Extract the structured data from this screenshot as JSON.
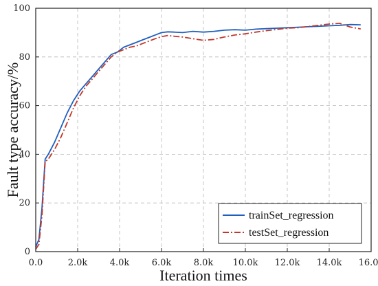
{
  "chart_data": {
    "type": "line",
    "xlabel": "Iteration times",
    "ylabel": "Fault type accuracy/%",
    "xlim": [
      0,
      16000
    ],
    "ylim": [
      0,
      100
    ],
    "x_ticks": [
      0,
      2000,
      4000,
      6000,
      8000,
      10000,
      12000,
      14000,
      16000
    ],
    "x_tick_labels": [
      "0.0",
      "2.0k",
      "4.0k",
      "6.0k",
      "8.0k",
      "10.0k",
      "12.0k",
      "14.0k",
      "16.0k"
    ],
    "y_ticks": [
      0,
      20,
      40,
      60,
      80,
      100
    ],
    "y_tick_labels": [
      "0",
      "20",
      "40",
      "60",
      "80",
      "100"
    ],
    "grid": true,
    "legend_position": "bottom-right",
    "series": [
      {
        "name": "trainSet_regression",
        "color": "#1f5fbf",
        "style": "solid",
        "x": [
          0,
          150,
          300,
          450,
          600,
          900,
          1200,
          1500,
          1800,
          2100,
          2400,
          2700,
          3000,
          3300,
          3600,
          3900,
          4200,
          4500,
          4800,
          5100,
          5400,
          5700,
          6000,
          6300,
          6600,
          7000,
          7500,
          8000,
          8500,
          9000,
          9500,
          10000,
          10500,
          11000,
          11500,
          12000,
          12500,
          13000,
          13500,
          14000,
          14500,
          15000,
          15500
        ],
        "y": [
          2,
          5,
          18,
          38,
          40,
          45,
          51,
          57,
          62,
          66,
          69,
          72,
          75,
          78,
          81,
          82,
          84,
          85,
          86,
          87,
          88,
          89,
          90,
          90.3,
          90.2,
          90,
          90.5,
          90.2,
          90.5,
          91,
          91.2,
          91,
          91.4,
          91.6,
          91.8,
          92,
          92.2,
          92.4,
          92.6,
          92.8,
          93,
          93.3,
          93.2
        ]
      },
      {
        "name": "testSet_regression",
        "color": "#c0392b",
        "style": "dash-dot",
        "x": [
          0,
          150,
          300,
          450,
          600,
          900,
          1200,
          1500,
          1800,
          2100,
          2400,
          2700,
          3000,
          3300,
          3600,
          3900,
          4200,
          4500,
          4800,
          5100,
          5400,
          5700,
          6000,
          6300,
          6600,
          7000,
          7500,
          8000,
          8500,
          9000,
          9500,
          10000,
          10500,
          11000,
          11500,
          12000,
          12500,
          13000,
          13500,
          14000,
          14500,
          15000,
          15500
        ],
        "y": [
          1,
          3,
          15,
          37,
          38,
          42,
          47,
          53,
          59,
          64,
          68,
          71,
          74,
          77,
          80,
          82,
          83,
          84,
          84.5,
          85.5,
          86.5,
          87.5,
          88.3,
          88.8,
          88.5,
          88.2,
          87.5,
          86.8,
          87.2,
          88.2,
          89,
          89.5,
          90.2,
          90.8,
          91.3,
          91.8,
          92,
          92.5,
          93,
          93.5,
          93.8,
          92.3,
          91.5
        ]
      }
    ]
  }
}
